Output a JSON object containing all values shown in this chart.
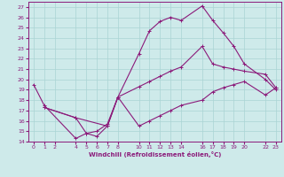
{
  "xlabel": "Windchill (Refroidissement éolien,°C)",
  "bg_color": "#ceeaea",
  "grid_color": "#aad4d4",
  "line_color": "#8b1a7a",
  "xlim": [
    -0.5,
    23.5
  ],
  "ylim": [
    14,
    27.5
  ],
  "yticks": [
    14,
    15,
    16,
    17,
    18,
    19,
    20,
    21,
    22,
    23,
    24,
    25,
    26,
    27
  ],
  "xticks": [
    0,
    1,
    2,
    4,
    5,
    6,
    7,
    8,
    10,
    11,
    12,
    13,
    14,
    16,
    17,
    18,
    19,
    20,
    22,
    23
  ],
  "line1_x": [
    0,
    1,
    4,
    5,
    6,
    7,
    8,
    10,
    11,
    12,
    13,
    14,
    16,
    17,
    18,
    19,
    20,
    22,
    23
  ],
  "line1_y": [
    19.5,
    17.5,
    14.3,
    14.8,
    15.0,
    15.7,
    18.3,
    22.5,
    24.7,
    25.6,
    26.0,
    25.7,
    27.1,
    25.7,
    24.5,
    23.2,
    21.5,
    20.0,
    19.0
  ],
  "line2_x": [
    1,
    4,
    7,
    8,
    10,
    11,
    12,
    13,
    14,
    16,
    17,
    18,
    19,
    20,
    22,
    23
  ],
  "line2_y": [
    17.3,
    16.3,
    15.5,
    18.3,
    19.3,
    19.8,
    20.3,
    20.8,
    21.2,
    23.2,
    21.5,
    21.2,
    21.0,
    20.8,
    20.5,
    19.2
  ],
  "line3_x": [
    1,
    4,
    5,
    6,
    7,
    8,
    10,
    11,
    12,
    13,
    14,
    16,
    17,
    18,
    19,
    20,
    22,
    23
  ],
  "line3_y": [
    17.3,
    16.3,
    14.8,
    14.5,
    15.5,
    18.3,
    15.5,
    16.0,
    16.5,
    17.0,
    17.5,
    18.0,
    18.8,
    19.2,
    19.5,
    19.8,
    18.5,
    19.2
  ]
}
